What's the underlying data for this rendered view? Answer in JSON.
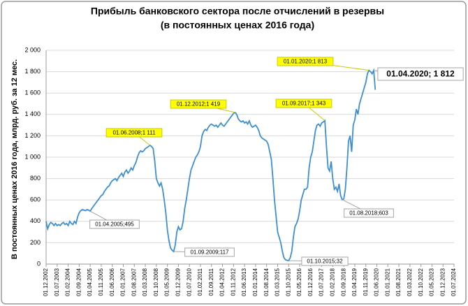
{
  "chart_data": {
    "type": "line",
    "title": [
      "Прибыль банковского сектора после отчислений в резервы",
      "(в постоянных ценах 2016 года)"
    ],
    "y_label": "В постоянных ценах 2016 года, млрд. руб. за 12 мес.",
    "color": "#3d8fd1",
    "grid": true,
    "ylim": [
      0,
      2000
    ],
    "yticks": [
      0,
      200,
      400,
      600,
      800,
      {
        "value": 1000,
        "label": "1 000"
      },
      {
        "value": 1200,
        "label": "1 200"
      },
      {
        "value": 1400,
        "label": "1 400"
      },
      {
        "value": 1600,
        "label": "1 600"
      },
      {
        "value": 1800,
        "label": "1 800"
      },
      {
        "value": 2000,
        "label": "2 000"
      }
    ],
    "categories": [
      "01.12.2002",
      null,
      null,
      null,
      null,
      null,
      null,
      "01.07.2003",
      null,
      null,
      null,
      null,
      null,
      null,
      "01.02.2004",
      null,
      null,
      null,
      null,
      null,
      null,
      "01.09.2004",
      null,
      null,
      null,
      null,
      null,
      null,
      "01.04.2005",
      null,
      null,
      null,
      null,
      null,
      null,
      "01.11.2005",
      null,
      null,
      null,
      null,
      null,
      null,
      "01.06.2006",
      null,
      null,
      null,
      null,
      null,
      null,
      "01.01.2007",
      null,
      null,
      null,
      null,
      null,
      null,
      "01.08.2007",
      null,
      null,
      null,
      null,
      null,
      null,
      "01.03.2008",
      null,
      null,
      null,
      null,
      null,
      null,
      "01.10.2008",
      null,
      null,
      null,
      null,
      null,
      null,
      "01.05.2009",
      null,
      null,
      null,
      null,
      null,
      null,
      "01.12.2009",
      null,
      null,
      null,
      null,
      null,
      null,
      "01.07.2010",
      null,
      null,
      null,
      null,
      null,
      null,
      "01.02.2011",
      null,
      null,
      null,
      null,
      null,
      null,
      "01.09.2011",
      null,
      null,
      null,
      null,
      null,
      null,
      "01.04.2012",
      null,
      null,
      null,
      null,
      null,
      null,
      "01.11.2012",
      null,
      null,
      null,
      null,
      null,
      null,
      "01.06.2013",
      null,
      null,
      null,
      null,
      null,
      null,
      "01.01.2014",
      null,
      null,
      null,
      null,
      null,
      null,
      "01.08.2014",
      null,
      null,
      null,
      null,
      null,
      null,
      "01.03.2015",
      null,
      null,
      null,
      null,
      null,
      null,
      "01.10.2015",
      null,
      null,
      null,
      null,
      null,
      null,
      "01.05.2016",
      null,
      null,
      null,
      null,
      null,
      null,
      "01.12.2016",
      null,
      null,
      null,
      null,
      null,
      null,
      "01.07.2017",
      null,
      null,
      null,
      null,
      null,
      null,
      "01.02.2018",
      null,
      null,
      null,
      null,
      null,
      null,
      "01.09.2018",
      null,
      null,
      null,
      null,
      null,
      null,
      "01.04.2019",
      null,
      null,
      null,
      null,
      null,
      null,
      "01.11.2019",
      null,
      null,
      null,
      null,
      null,
      null,
      "01.06.2020",
      null,
      null,
      null,
      null,
      null,
      null,
      "01.01.2021",
      null,
      null,
      null,
      null,
      null,
      null,
      "01.08.2021",
      null,
      null,
      null,
      null,
      null,
      null,
      "01.03.2022",
      null,
      null,
      null,
      null,
      null,
      null,
      "01.10.2022",
      null,
      null,
      null,
      null,
      null,
      null,
      "01.05.2023",
      null,
      null,
      null,
      null,
      null,
      null,
      "01.12.2023",
      null,
      null,
      null,
      null,
      null,
      null,
      "01.07.2024"
    ],
    "values": [
      400,
      330,
      370,
      390,
      380,
      360,
      380,
      360,
      370,
      360,
      380,
      390,
      370,
      380,
      360,
      400,
      380,
      370,
      400,
      380,
      440,
      480,
      500,
      510,
      505,
      500,
      510,
      505,
      495,
      520,
      540,
      560,
      580,
      600,
      620,
      640,
      650,
      680,
      700,
      720,
      730,
      760,
      780,
      790,
      800,
      780,
      810,
      830,
      850,
      820,
      860,
      880,
      850,
      870,
      900,
      880,
      920,
      950,
      1000,
      1040,
      1060,
      1050,
      1060,
      1080,
      1090,
      1100,
      1111,
      1100,
      1080,
      960,
      800,
      760,
      730,
      760,
      700,
      600,
      480,
      320,
      220,
      150,
      130,
      117,
      180,
      300,
      350,
      320,
      330,
      400,
      520,
      600,
      700,
      800,
      880,
      920,
      960,
      1000,
      1020,
      1050,
      1100,
      1200,
      1240,
      1260,
      1250,
      1280,
      1300,
      1310,
      1300,
      1290,
      1300,
      1280,
      1300,
      1320,
      1300,
      1290,
      1310,
      1330,
      1350,
      1370,
      1390,
      1410,
      1419,
      1400,
      1360,
      1340,
      1330,
      1340,
      1320,
      1330,
      1310,
      1340,
      1300,
      1280,
      1290,
      1300,
      1280,
      1250,
      1200,
      1180,
      1170,
      1160,
      1150,
      1120,
      1050,
      980,
      800,
      600,
      450,
      300,
      250,
      200,
      120,
      60,
      40,
      35,
      32,
      60,
      120,
      250,
      350,
      380,
      420,
      500,
      600,
      650,
      700,
      700,
      720,
      900,
      1000,
      1050,
      1150,
      1250,
      1300,
      1310,
      1290,
      1320,
      1330,
      1343,
      1100,
      900,
      870,
      960,
      800,
      700,
      720,
      680,
      750,
      640,
      603,
      610,
      700,
      900,
      1150,
      1200,
      1050,
      1300,
      1350,
      1450,
      1400,
      1500,
      1550,
      1600,
      1650,
      1700,
      1780,
      1813,
      1800,
      1780,
      1812,
      1630,
      null,
      null,
      null,
      null,
      null,
      null,
      null,
      null,
      null,
      null,
      null,
      null,
      null,
      null,
      null,
      null,
      null,
      null,
      null,
      null,
      null,
      null,
      null,
      null,
      null,
      null,
      null,
      null,
      null,
      null,
      null,
      null,
      null,
      null,
      null,
      null,
      null,
      null,
      null,
      null,
      null,
      null,
      null,
      null,
      null,
      null,
      null,
      null,
      null,
      null
    ],
    "annotations": [
      "01.04.2005;495",
      "01.06.2008;1 111",
      "01.09.2009;117",
      "01.12.2012;1 419",
      "01.10.2015;32",
      "01.09.2017;1 343",
      "01.08.2018;603",
      "01.01.2020;1 813",
      "01.04.2020; 1 812"
    ]
  }
}
